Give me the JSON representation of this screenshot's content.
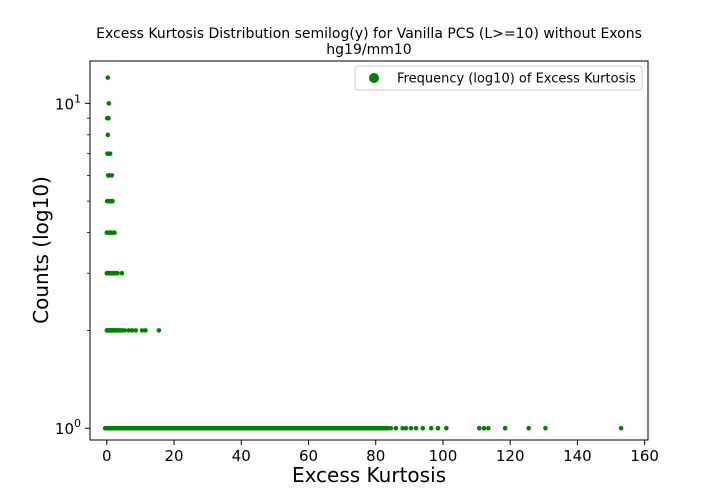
{
  "chart_data": {
    "type": "scatter",
    "title": "Excess Kurtosis Distribution semilog(y) for Vanilla PCS (L>=10) without Exons",
    "subtitle": "hg19/mm10",
    "xlabel": "Excess Kurtosis",
    "ylabel": "Counts (log10)",
    "xlim": [
      -5,
      161
    ],
    "ylim": [
      0.92,
      13.5
    ],
    "yscale": "log",
    "x_ticks": [
      {
        "value": 0,
        "label": "0"
      },
      {
        "value": 20,
        "label": "20"
      },
      {
        "value": 40,
        "label": "40"
      },
      {
        "value": 60,
        "label": "60"
      },
      {
        "value": 80,
        "label": "80"
      },
      {
        "value": 100,
        "label": "100"
      },
      {
        "value": 120,
        "label": "120"
      },
      {
        "value": 140,
        "label": "140"
      },
      {
        "value": 160,
        "label": "160"
      }
    ],
    "y_ticks": [
      {
        "value": 1,
        "label": "10",
        "exp": "0"
      },
      {
        "value": 10,
        "label": "10",
        "exp": "1"
      }
    ],
    "grid": false,
    "legend": {
      "position": "top-right",
      "entries": [
        "Frequency (log10) of Excess Kurtosis"
      ]
    },
    "color": "#008000",
    "series": [
      {
        "name": "Frequency (log10) of Excess Kurtosis",
        "points": [
          [
            0.3,
            12
          ],
          [
            0.6,
            10
          ],
          [
            0.1,
            9
          ],
          [
            0.5,
            9
          ],
          [
            0.3,
            8
          ],
          [
            0.2,
            7
          ],
          [
            0.6,
            7
          ],
          [
            1.0,
            7
          ],
          [
            0.4,
            6
          ],
          [
            0.7,
            6
          ],
          [
            1.5,
            6
          ],
          [
            0.1,
            5
          ],
          [
            0.4,
            5
          ],
          [
            0.8,
            5
          ],
          [
            1.2,
            5
          ],
          [
            1.7,
            5
          ],
          [
            0.0,
            4
          ],
          [
            0.3,
            4
          ],
          [
            0.6,
            4
          ],
          [
            0.9,
            4
          ],
          [
            1.3,
            4
          ],
          [
            1.8,
            4
          ],
          [
            2.3,
            4
          ],
          [
            0.0,
            3
          ],
          [
            0.3,
            3
          ],
          [
            0.6,
            3
          ],
          [
            0.9,
            3
          ],
          [
            1.2,
            3
          ],
          [
            1.6,
            3
          ],
          [
            2.0,
            3
          ],
          [
            2.5,
            3
          ],
          [
            3.2,
            3
          ],
          [
            4.5,
            3
          ],
          [
            0.0,
            2
          ],
          [
            0.25,
            2
          ],
          [
            0.5,
            2
          ],
          [
            0.75,
            2
          ],
          [
            1.0,
            2
          ],
          [
            1.25,
            2
          ],
          [
            1.5,
            2
          ],
          [
            1.75,
            2
          ],
          [
            2.0,
            2
          ],
          [
            2.3,
            2
          ],
          [
            2.6,
            2
          ],
          [
            2.9,
            2
          ],
          [
            3.2,
            2
          ],
          [
            3.6,
            2
          ],
          [
            4.0,
            2
          ],
          [
            4.5,
            2
          ],
          [
            5.3,
            2
          ],
          [
            6.5,
            2
          ],
          [
            7.5,
            2
          ],
          [
            8.6,
            2
          ],
          [
            10.5,
            2
          ],
          [
            11.5,
            2
          ],
          [
            15.5,
            2
          ],
          [
            84.5,
            1
          ],
          [
            86.0,
            1
          ],
          [
            88.0,
            1
          ],
          [
            89.0,
            1
          ],
          [
            90.5,
            1
          ],
          [
            92.0,
            1
          ],
          [
            94.0,
            1
          ],
          [
            96.5,
            1
          ],
          [
            98.5,
            1
          ],
          [
            101.0,
            1
          ],
          [
            110.8,
            1
          ],
          [
            112.2,
            1
          ],
          [
            113.5,
            1
          ],
          [
            118.5,
            1
          ],
          [
            125.5,
            1
          ],
          [
            130.5,
            1
          ],
          [
            153.0,
            1
          ]
        ],
        "dense_ranges_at_y1": [
          [
            -0.5,
            84.0
          ]
        ]
      }
    ]
  }
}
